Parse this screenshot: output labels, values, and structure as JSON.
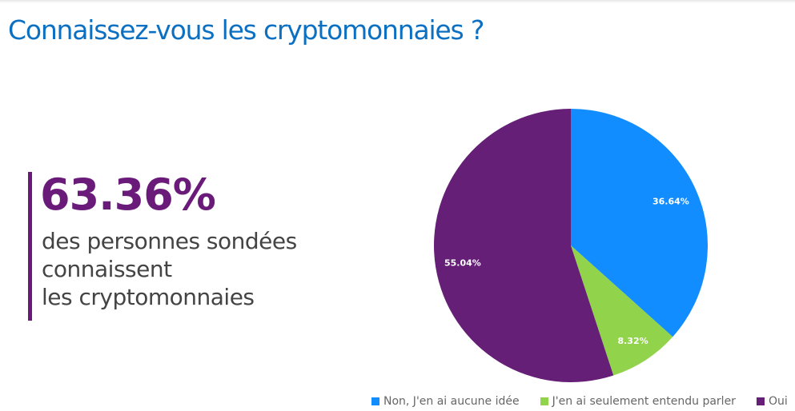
{
  "header": {
    "title": "Connaissez-vous les cryptomonnaies ?"
  },
  "kpi": {
    "value": "63.36%",
    "description_lines": [
      "des personnes sondées",
      "connaissent",
      "les cryptomonnaies"
    ],
    "accent": "#6a1b7a"
  },
  "chart_data": {
    "type": "pie",
    "start": "top",
    "direction": "clockwise",
    "legend_position": "bottom",
    "slices": [
      {
        "name": "Non, J'en ai aucune idée",
        "value": 36.64,
        "label": "36.64%",
        "color": "#118dff"
      },
      {
        "name": "J'en ai seulement entendu parler",
        "value": 8.32,
        "label": "8.32%",
        "color": "#91d34a"
      },
      {
        "name": "Oui",
        "value": 55.04,
        "label": "55.04%",
        "color": "#661f77"
      }
    ]
  }
}
